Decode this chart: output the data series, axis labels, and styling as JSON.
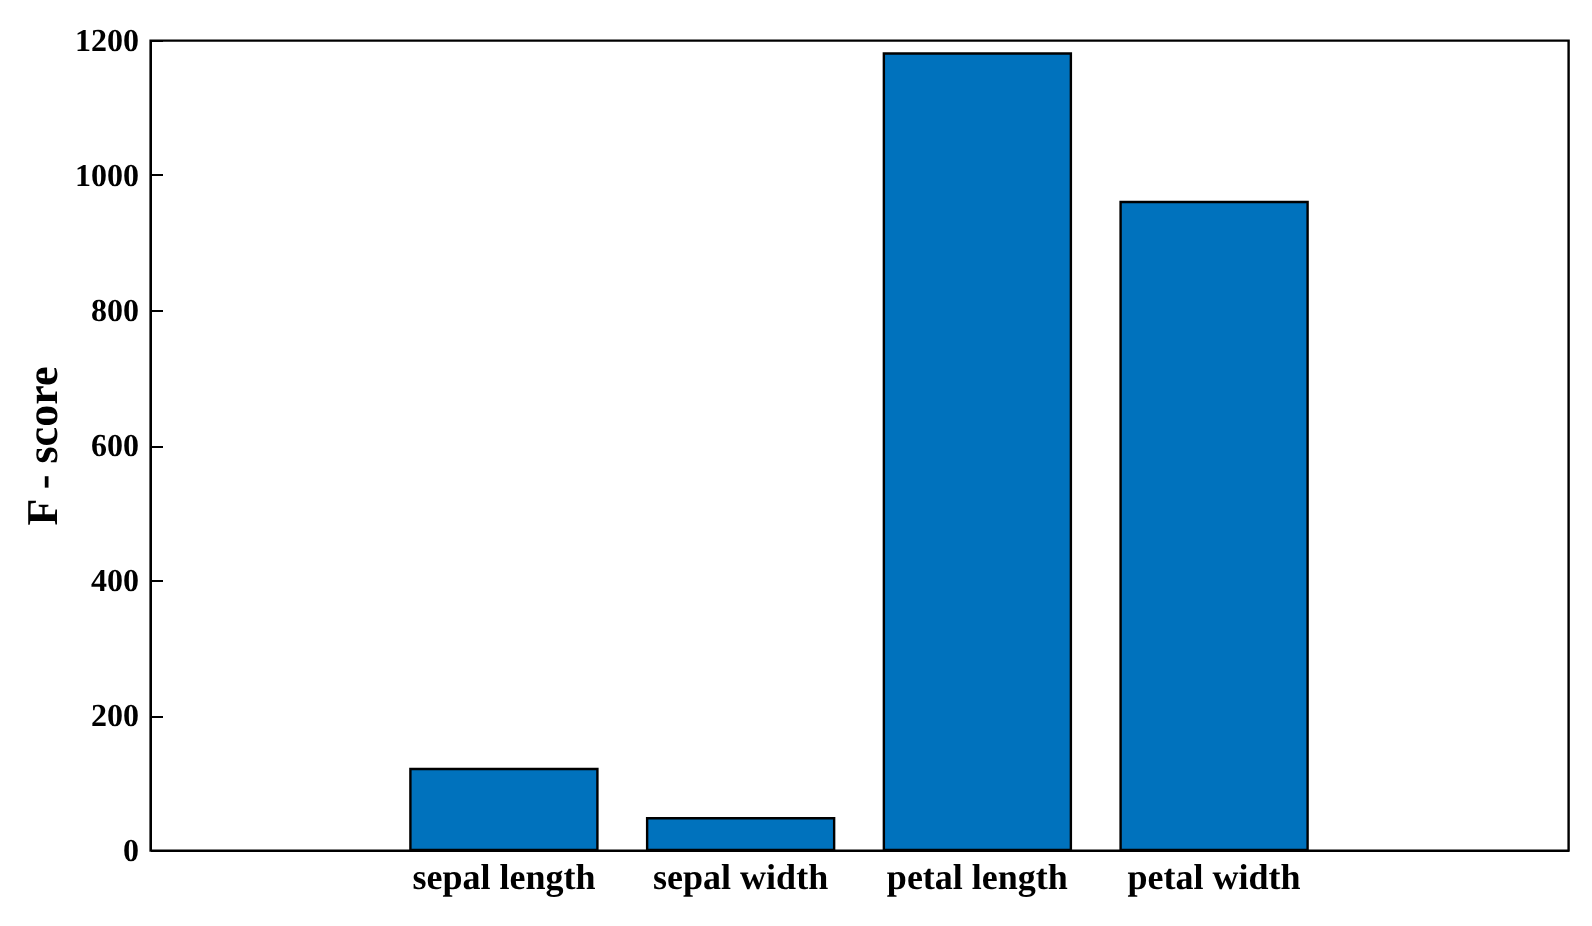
{
  "chart_data": {
    "type": "bar",
    "ylabel": "F - score",
    "categories": [
      null,
      "sepal length",
      "sepal width",
      "petal length",
      "petal width",
      null
    ],
    "values": [
      null,
      120,
      47,
      1180,
      960,
      null
    ],
    "color": "#0072bd",
    "ylim": [
      0,
      1200
    ],
    "yticks": [
      0,
      200,
      400,
      600,
      800,
      1000,
      1200
    ],
    "grid": false
  }
}
